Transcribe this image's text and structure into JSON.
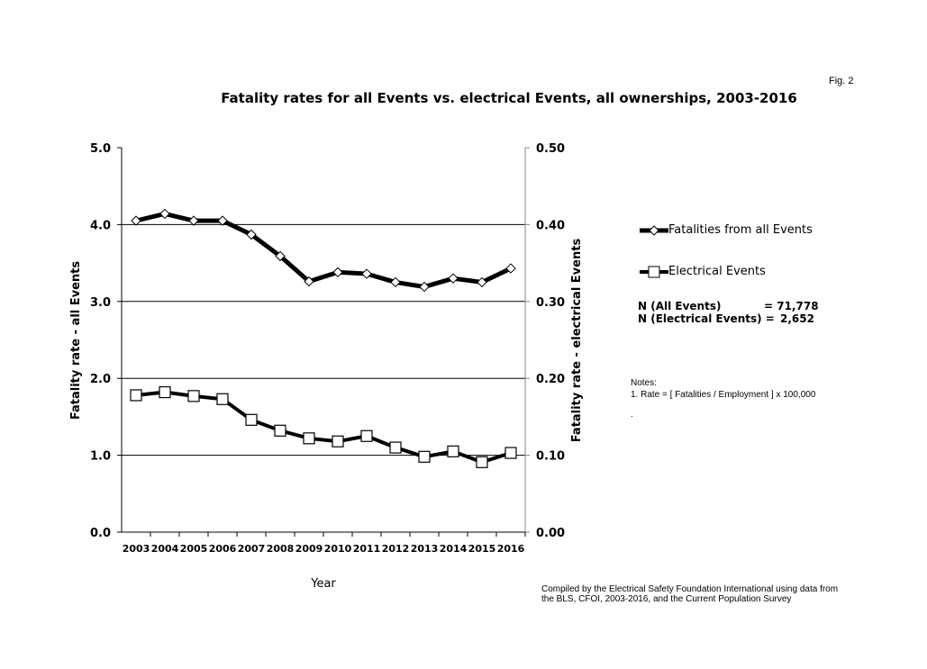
{
  "figure_label": "Fig. 2",
  "chart_data": {
    "type": "line",
    "title": "Fatality rates for all Events vs. electrical Events, all ownerships,  2003-2016",
    "xlabel": "Year",
    "ylabel_left": "Fatality rate - all Events",
    "ylabel_right": "Fatality rate - electrical Events",
    "categories": [
      "2003",
      "2004",
      "2005",
      "2006",
      "2007",
      "2008",
      "2009",
      "2010",
      "2011",
      "2012",
      "2013",
      "2014",
      "2015",
      "2016"
    ],
    "ylim_left": [
      0,
      5
    ],
    "ylim_right": [
      0,
      0.5
    ],
    "yticks_left": [
      "0.0",
      "1.0",
      "2.0",
      "3.0",
      "4.0",
      "5.0"
    ],
    "yticks_right": [
      "0.00",
      "0.10",
      "0.20",
      "0.30",
      "0.40",
      "0.50"
    ],
    "grid": true,
    "legend_placement": "right",
    "series": [
      {
        "name": "Fatalities from all Events",
        "axis": "left",
        "marker": "diamond",
        "values": [
          4.05,
          4.14,
          4.05,
          4.05,
          3.87,
          3.59,
          3.26,
          3.38,
          3.36,
          3.25,
          3.19,
          3.3,
          3.25,
          3.43
        ]
      },
      {
        "name": "Electrical Events",
        "axis": "right",
        "marker": "square",
        "values": [
          0.178,
          0.182,
          0.177,
          0.173,
          0.146,
          0.132,
          0.122,
          0.118,
          0.125,
          0.11,
          0.098,
          0.105,
          0.091,
          0.103
        ]
      }
    ]
  },
  "stats": {
    "all_label": "N (All Events)",
    "all_value": "= 71,778",
    "elec_label": "N (Electrical Events) =",
    "elec_value": "2,652"
  },
  "notes": {
    "heading": "Notes:",
    "item1": "1.  Rate = [ Fatalities / Employment ] x 100,000",
    "dot": "."
  },
  "source": {
    "line1": "Compiled by the Electrical Safety Foundation International using data from",
    "line2": "the BLS, CFOI, 2003-2016, and the Current Population Survey"
  }
}
